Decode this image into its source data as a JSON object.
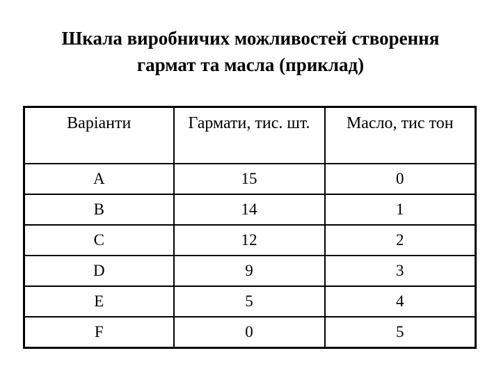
{
  "slide": {
    "title_line1": "Шкала виробничих можливостей створення",
    "title_line2": "гармат та масла (приклад)"
  },
  "table": {
    "headers": [
      "Варіанти",
      "Гармати, тис. шт.",
      "Масло, тис тон"
    ],
    "rows": [
      {
        "variant": "A",
        "guns": "15",
        "butter": "0"
      },
      {
        "variant": "B",
        "guns": "14",
        "butter": "1"
      },
      {
        "variant": "C",
        "guns": "12",
        "butter": "2"
      },
      {
        "variant": "D",
        "guns": "9",
        "butter": "3"
      },
      {
        "variant": "E",
        "guns": "5",
        "butter": "4"
      },
      {
        "variant": "F",
        "guns": "0",
        "butter": "5"
      }
    ]
  },
  "colors": {
    "text": "#000000",
    "background": "#ffffff",
    "border": "#000000"
  }
}
